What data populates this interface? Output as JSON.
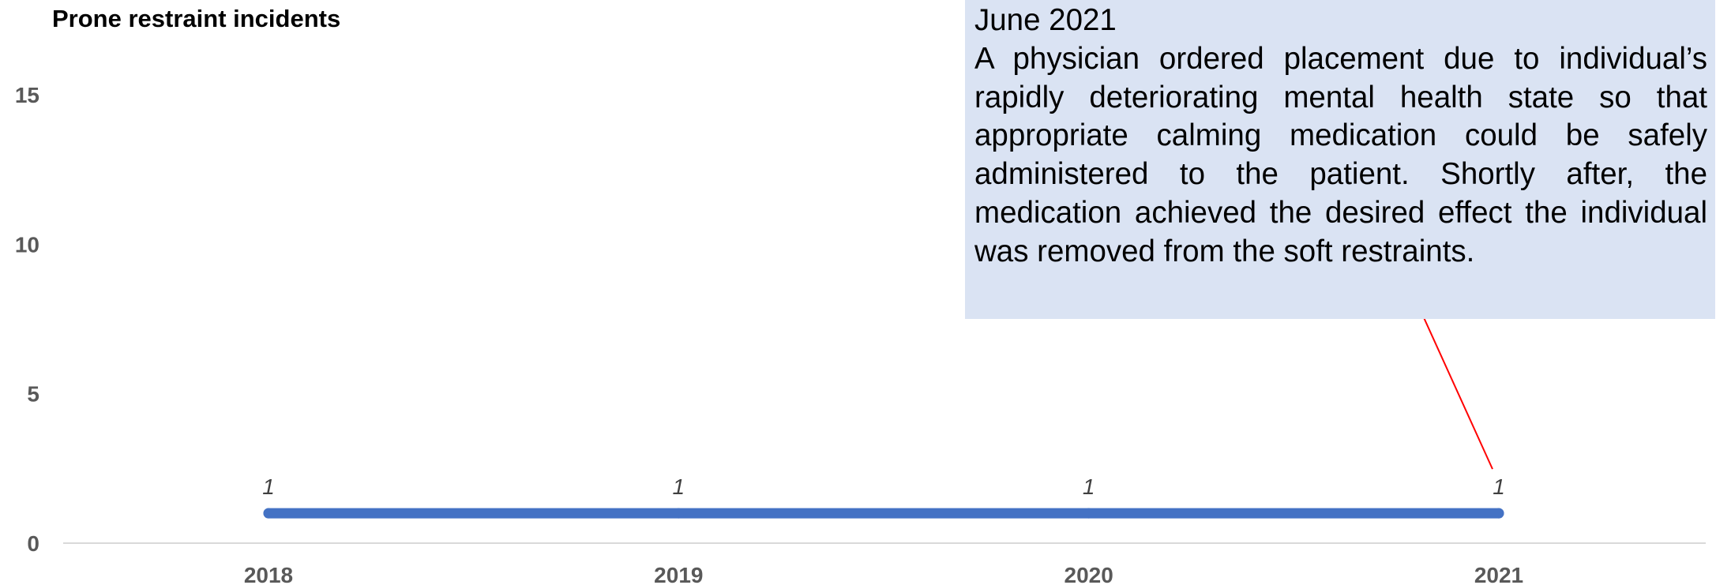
{
  "chart_data": {
    "type": "line",
    "title": "Prone restraint incidents",
    "xlabel": "",
    "ylabel": "",
    "categories": [
      "2018",
      "2019",
      "2020",
      "2021"
    ],
    "series": [
      {
        "values": [
          1,
          1,
          1,
          1
        ],
        "color": "#4472c4"
      }
    ],
    "data_labels": [
      "1",
      "1",
      "1",
      "1"
    ],
    "ylim": [
      0,
      15
    ],
    "yticks": [
      "0",
      "5",
      "10",
      "15"
    ],
    "grid": false,
    "legend": "none",
    "annotation": {
      "heading": "June 2021",
      "text": "A physician ordered placement due to individual’s rapidly deteriorating mental health state so that appropriate calming medication could be safely administered to the patient. Shortly after, the medication achieved the desired effect  the individual was removed from the soft restraints.",
      "points_to": "2021",
      "box_color": "#dae3f3",
      "leader_color": "#ff0000"
    }
  }
}
